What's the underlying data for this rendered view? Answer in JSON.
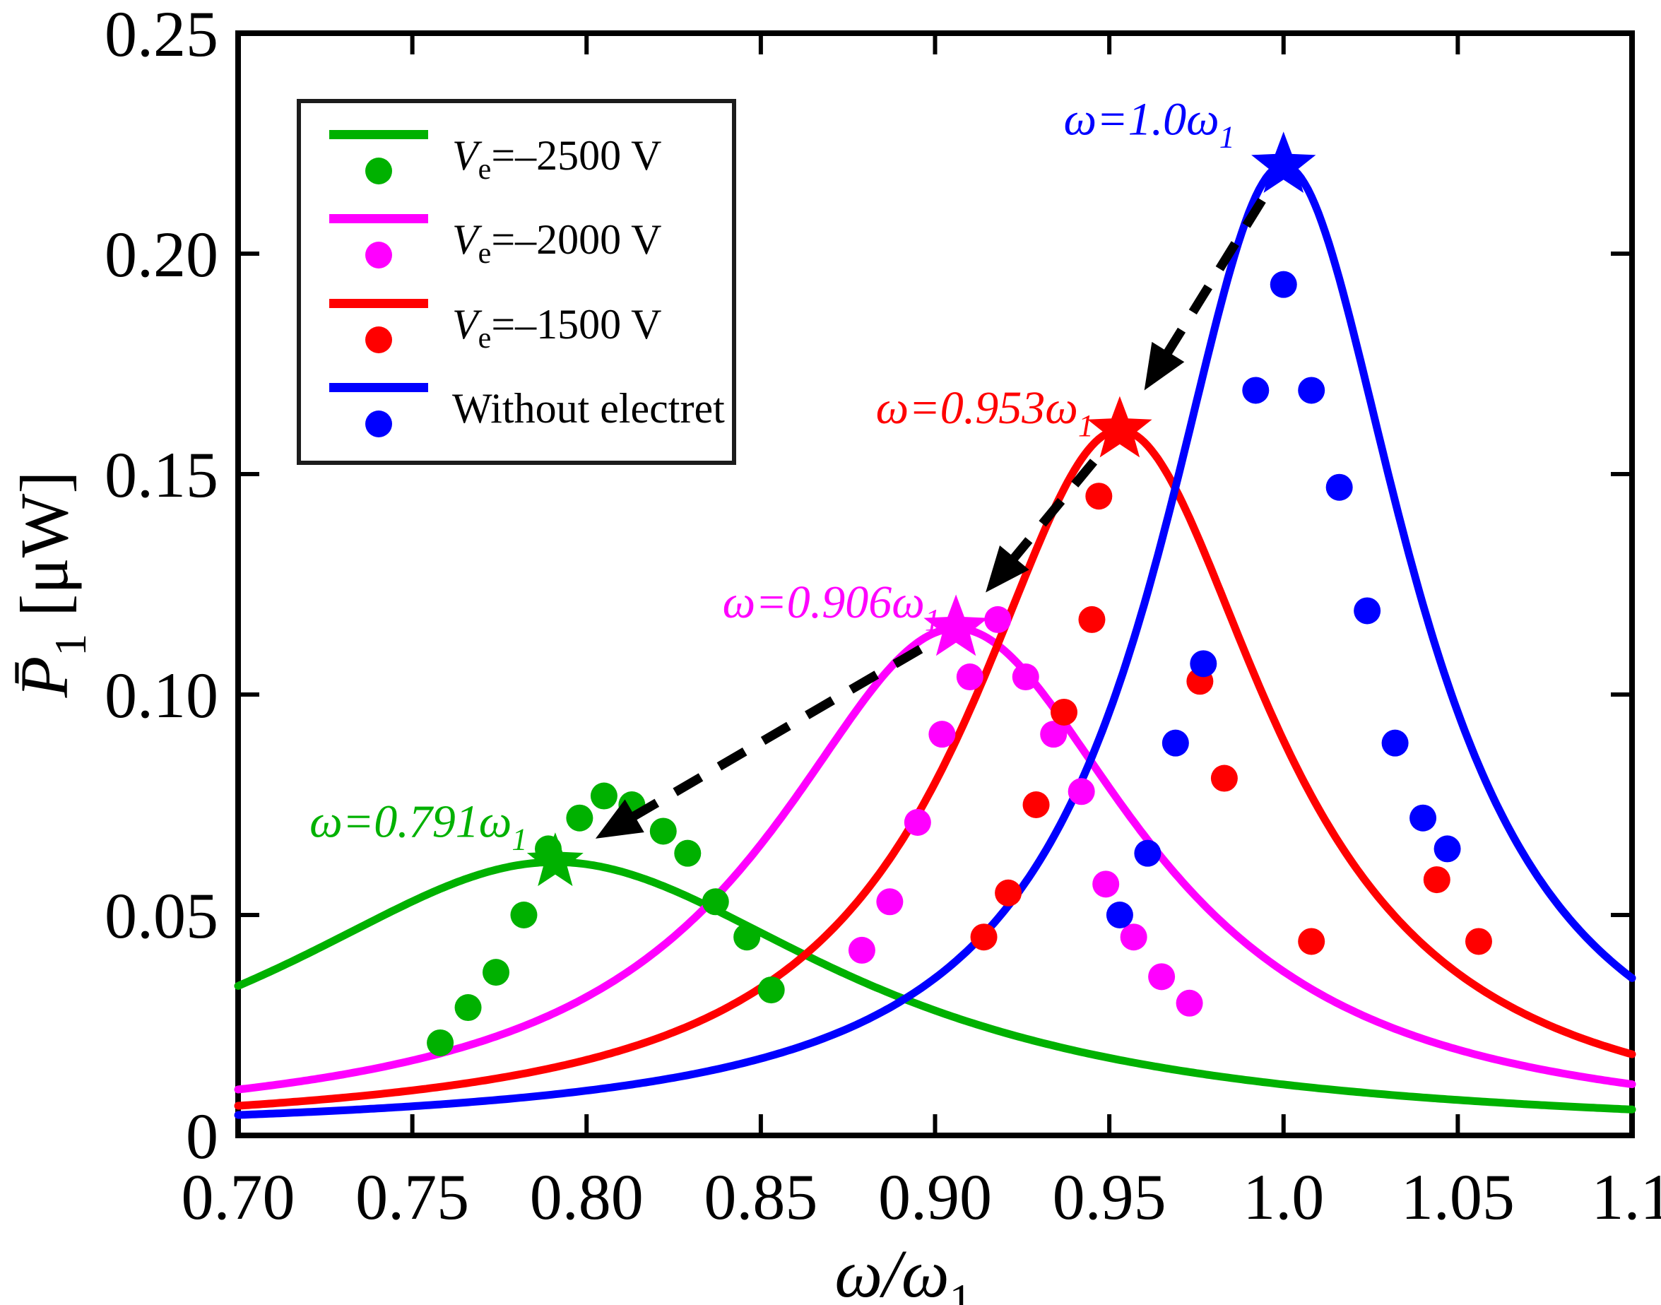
{
  "figure": {
    "background": "#ffffff",
    "axis_color": "#000000"
  },
  "chart_data": {
    "type": "line",
    "title": "",
    "xlabel": {
      "main": "ω/ω",
      "sub": "1"
    },
    "ylabel": {
      "main": "P̄",
      "sub": "1",
      "rest": " [μW]"
    },
    "xlim": [
      0.7,
      1.1
    ],
    "ylim": [
      0,
      0.25
    ],
    "grid": false,
    "legend_position": "top-left",
    "x_ticks": [
      {
        "v": 0.7,
        "label": "0.70"
      },
      {
        "v": 0.75,
        "label": "0.75"
      },
      {
        "v": 0.8,
        "label": "0.80"
      },
      {
        "v": 0.85,
        "label": "0.85"
      },
      {
        "v": 0.9,
        "label": "0.90"
      },
      {
        "v": 0.95,
        "label": "0.95"
      },
      {
        "v": 1.0,
        "label": "1.0"
      },
      {
        "v": 1.05,
        "label": "1.05"
      },
      {
        "v": 1.1,
        "label": "1.1"
      }
    ],
    "y_ticks": [
      {
        "v": 0.0,
        "label": "0"
      },
      {
        "v": 0.05,
        "label": "0.05"
      },
      {
        "v": 0.1,
        "label": "0.10"
      },
      {
        "v": 0.15,
        "label": "0.15"
      },
      {
        "v": 0.2,
        "label": "0.20"
      },
      {
        "v": 0.25,
        "label": "0.25"
      }
    ],
    "series": [
      {
        "id": "Ve-2500V",
        "name": "Ve=–2500 V",
        "color": "#00b100",
        "curve": {
          "model": "lorentzian",
          "x0": 0.791,
          "ymax": 0.062,
          "w": 0.1
        },
        "star": {
          "x": 0.791,
          "y": 0.062,
          "size": 42
        },
        "dots": [
          [
            0.758,
            0.021
          ],
          [
            0.766,
            0.029
          ],
          [
            0.774,
            0.037
          ],
          [
            0.782,
            0.05
          ],
          [
            0.789,
            0.065
          ],
          [
            0.798,
            0.072
          ],
          [
            0.805,
            0.077
          ],
          [
            0.813,
            0.075
          ],
          [
            0.822,
            0.069
          ],
          [
            0.829,
            0.064
          ],
          [
            0.837,
            0.053
          ],
          [
            0.846,
            0.045
          ],
          [
            0.853,
            0.033
          ]
        ],
        "annotation": {
          "pre": "ω=0.791ω",
          "sub": "1",
          "x": 0.783,
          "y": 0.0677
        }
      },
      {
        "id": "Ve-2000V",
        "name": "Ve=–2000 V",
        "color": "#ff00ff",
        "curve": {
          "model": "lorentzian",
          "x0": 0.906,
          "ymax": 0.115,
          "w": 0.065
        },
        "star": {
          "x": 0.906,
          "y": 0.115,
          "size": 48
        },
        "dots": [
          [
            0.879,
            0.042
          ],
          [
            0.887,
            0.053
          ],
          [
            0.895,
            0.071
          ],
          [
            0.902,
            0.091
          ],
          [
            0.91,
            0.104
          ],
          [
            0.918,
            0.117
          ],
          [
            0.926,
            0.104
          ],
          [
            0.934,
            0.091
          ],
          [
            0.942,
            0.078
          ],
          [
            0.949,
            0.057
          ],
          [
            0.957,
            0.045
          ],
          [
            0.965,
            0.036
          ],
          [
            0.973,
            0.03
          ]
        ],
        "annotation": {
          "pre": "ω=0.906ω",
          "sub": "1",
          "x": 0.9015,
          "y": 0.1175
        }
      },
      {
        "id": "Ve-1500V",
        "name": "Ve=–1500 V",
        "color": "#ff0000",
        "curve": {
          "model": "lorentzian",
          "x0": 0.953,
          "ymax": 0.16,
          "w": 0.053
        },
        "star": {
          "x": 0.953,
          "y": 0.16,
          "size": 48
        },
        "dots": [
          [
            0.914,
            0.045
          ],
          [
            0.921,
            0.055
          ],
          [
            0.929,
            0.075
          ],
          [
            0.937,
            0.096
          ],
          [
            0.945,
            0.117
          ],
          [
            0.947,
            0.145
          ],
          [
            0.976,
            0.103
          ],
          [
            0.983,
            0.081
          ],
          [
            1.008,
            0.044
          ],
          [
            1.044,
            0.058
          ],
          [
            1.056,
            0.044
          ]
        ],
        "annotation": {
          "pre": "ω=0.953ω",
          "sub": "1",
          "x": 0.9455,
          "y": 0.1615
        }
      },
      {
        "id": "without-electret",
        "name": "Without electret",
        "color": "#0000ff",
        "curve": {
          "model": "lorentzian",
          "x0": 1.0,
          "ymax": 0.22,
          "w": 0.044
        },
        "star": {
          "x": 1.0,
          "y": 0.22,
          "size": 48
        },
        "dots": [
          [
            0.953,
            0.05
          ],
          [
            0.961,
            0.064
          ],
          [
            0.969,
            0.089
          ],
          [
            0.977,
            0.107
          ],
          [
            0.992,
            0.169
          ],
          [
            1.0,
            0.193
          ],
          [
            1.008,
            0.169
          ],
          [
            1.016,
            0.147
          ],
          [
            1.024,
            0.119
          ],
          [
            1.032,
            0.089
          ],
          [
            1.04,
            0.072
          ],
          [
            1.047,
            0.065
          ]
        ],
        "annotation": {
          "pre": "ω=1.0ω",
          "sub": "1",
          "x": 0.986,
          "y": 0.227
        }
      }
    ],
    "arrow": {
      "chain": [
        3,
        2,
        1,
        0
      ],
      "color": "#000000",
      "style": "dashed"
    },
    "legend": {
      "entries": [
        {
          "pre": "V",
          "sub": "e",
          "post": "=–2500 V",
          "color": "#00b100"
        },
        {
          "pre": "V",
          "sub": "e",
          "post": "=–2000 V",
          "color": "#ff00ff"
        },
        {
          "pre": "V",
          "sub": "e",
          "post": "=–1500 V",
          "color": "#ff0000"
        },
        {
          "pre": "",
          "sub": "",
          "post": "Without electret",
          "color": "#0000ff"
        }
      ]
    }
  }
}
